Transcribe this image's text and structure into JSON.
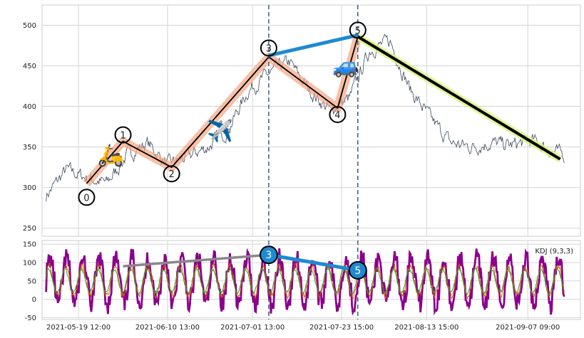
{
  "chart_data": [
    {
      "type": "line",
      "panel": "price",
      "x": [
        "2021-05-11",
        "2021-05-16",
        "2021-05-21",
        "2021-05-26",
        "2021-05-31",
        "2021-06-05",
        "2021-06-10",
        "2021-06-15",
        "2021-06-20",
        "2021-06-25",
        "2021-06-30",
        "2021-07-05",
        "2021-07-10",
        "2021-07-15",
        "2021-07-20",
        "2021-07-25",
        "2021-07-30",
        "2021-08-04",
        "2021-08-09",
        "2021-08-14",
        "2021-08-19",
        "2021-08-24",
        "2021-08-29",
        "2021-09-03",
        "2021-09-08",
        "2021-09-13",
        "2021-09-16"
      ],
      "series": [
        {
          "values": [
            290,
            322,
            312,
            305,
            340,
            355,
            328,
            338,
            350,
            372,
            420,
            440,
            455,
            420,
            395,
            410,
            470,
            480,
            420,
            385,
            355,
            350,
            355,
            352,
            358,
            345,
            340
          ]
        }
      ],
      "ylim": [
        240,
        525
      ],
      "yticks": [
        250,
        300,
        350,
        400,
        450,
        500
      ],
      "grid": true,
      "annotations": {
        "waves": [
          {
            "label": "0",
            "date": "2021-05-21",
            "value": 288
          },
          {
            "label": "1",
            "date": "2021-05-30",
            "value": 365
          },
          {
            "label": "2",
            "date": "2021-06-11",
            "value": 317
          },
          {
            "label": "3",
            "date": "2021-07-05",
            "value": 472
          },
          {
            "label": "4",
            "date": "2021-07-22",
            "value": 390
          },
          {
            "label": "5",
            "date": "2021-07-27",
            "value": 494
          }
        ],
        "zigzag": [
          {
            "date": "2021-05-21",
            "value": 305
          },
          {
            "date": "2021-05-30",
            "value": 357
          },
          {
            "date": "2021-06-11",
            "value": 325
          },
          {
            "date": "2021-07-05",
            "value": 461
          },
          {
            "date": "2021-07-22",
            "value": 398
          },
          {
            "date": "2021-07-27",
            "value": 486
          },
          {
            "date": "2021-09-15",
            "value": 335
          }
        ],
        "blue_line": [
          {
            "date": "2021-07-05",
            "value": 461
          },
          {
            "date": "2021-07-27",
            "value": 486
          }
        ],
        "vlines": [
          "2021-07-05",
          "2021-07-27"
        ],
        "emojis": [
          {
            "symbol": "🛵",
            "date": "2021-05-27",
            "value": 340
          },
          {
            "symbol": "✈️",
            "date": "2021-06-23",
            "value": 370
          },
          {
            "symbol": "🚙",
            "date": "2021-07-24",
            "value": 450
          }
        ]
      }
    },
    {
      "type": "line",
      "panel": "kdj",
      "legend": "KDJ (9,3,3)",
      "legend_position": "top-right",
      "ylim": [
        -55,
        160
      ],
      "yticks": [
        -50,
        0,
        50,
        100,
        150
      ],
      "x_tick_labels": [
        "2021-05-19 12:00",
        "2021-06-10 13:00",
        "2021-07-01 13:00",
        "2021-07-23 15:00",
        "2021-08-13 15:00",
        "2021-09-07 09:00"
      ],
      "x_tick_dates": [
        "2021-05-19",
        "2021-06-10",
        "2021-07-01",
        "2021-07-23",
        "2021-08-13",
        "2021-09-07"
      ],
      "grid": true,
      "annotations": {
        "gray_line": [
          {
            "date": "2021-05-30",
            "value": 90
          },
          {
            "date": "2021-07-05",
            "value": 121
          }
        ],
        "blue_line": [
          {
            "date": "2021-07-05",
            "value": 121
          },
          {
            "date": "2021-07-27",
            "value": 79
          }
        ],
        "markers": [
          {
            "label": "3",
            "date": "2021-07-05",
            "value": 121
          },
          {
            "label": "5",
            "date": "2021-07-27",
            "value": 79
          }
        ]
      }
    }
  ],
  "colors": {
    "price_line": "#3d4b5c",
    "zigzag": "#000000",
    "zigzag_glow": "#f4a582",
    "last_leg_glow": "#d9f27a",
    "blue": "#1f8ad1",
    "gray": "#888888",
    "kdj_j": "#8b008b",
    "kdj_k": "#d95f02",
    "kdj_d": "#2ca02c",
    "vline": "#3d5a80",
    "grid": "#d4d4d4"
  }
}
